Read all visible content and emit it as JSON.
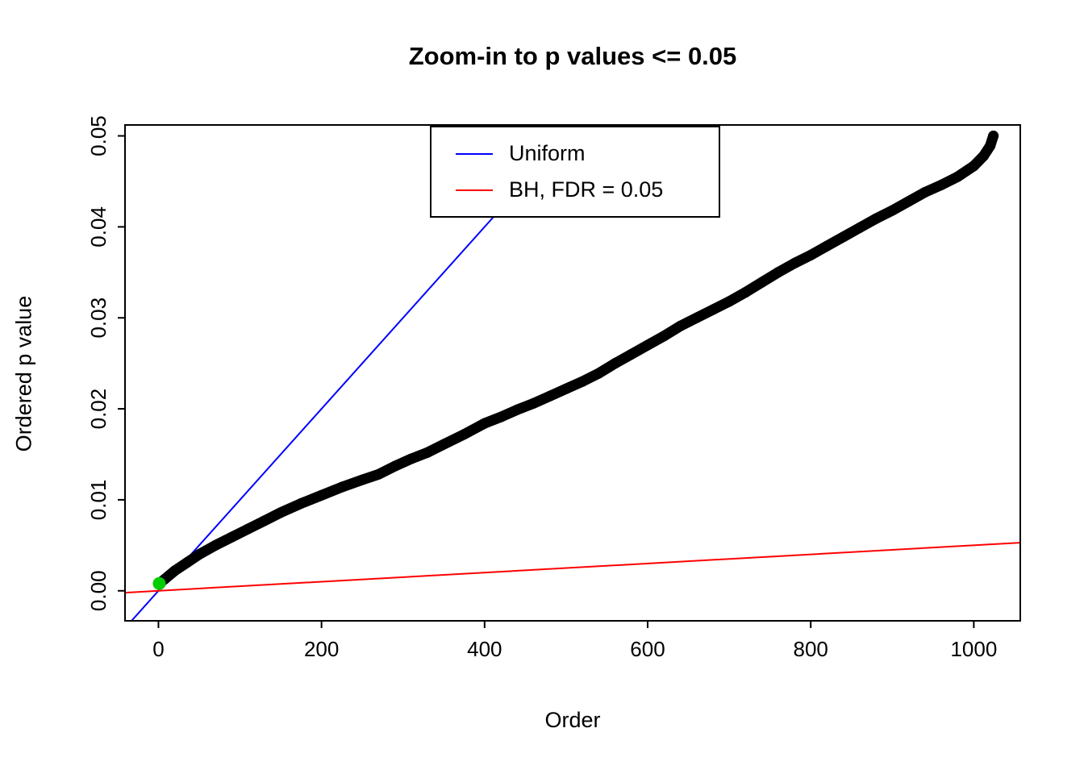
{
  "chart_data": {
    "type": "scatter",
    "title": "Zoom-in to p values <= 0.05",
    "xlabel": "Order",
    "ylabel": "Ordered p value",
    "xlim": [
      -41,
      1057
    ],
    "ylim": [
      -0.0033,
      0.0512
    ],
    "grid": false,
    "xticks": {
      "values": [
        0,
        200,
        400,
        600,
        800,
        1000
      ],
      "labels": [
        "0",
        "200",
        "400",
        "600",
        "800",
        "1000"
      ]
    },
    "yticks": {
      "values": [
        0,
        0.01,
        0.02,
        0.03,
        0.04,
        0.05
      ],
      "labels": [
        "0.00",
        "0.01",
        "0.02",
        "0.03",
        "0.04",
        "0.05"
      ]
    },
    "legend": [
      {
        "label": "Uniform",
        "color": "#0000FF"
      },
      {
        "label": "BH, FDR = 0.05",
        "color": "#FF0000"
      }
    ],
    "lines": [
      {
        "name": "uniform-line",
        "slope": 0.0001,
        "intercept": 0,
        "color": "#0000FF",
        "width": 2
      },
      {
        "name": "bh-fdr-line",
        "slope": 5e-06,
        "intercept": 0,
        "color": "#FF0000",
        "width": 2
      }
    ],
    "points_series": {
      "name": "ordered-p-values",
      "color": "#000000",
      "marker_radius": 6.5,
      "points": [
        [
          1,
          0.0008
        ],
        [
          8,
          0.0013
        ],
        [
          20,
          0.0022
        ],
        [
          35,
          0.0031
        ],
        [
          50,
          0.004
        ],
        [
          70,
          0.005
        ],
        [
          90,
          0.0059
        ],
        [
          110,
          0.0068
        ],
        [
          130,
          0.0077
        ],
        [
          150,
          0.0086
        ],
        [
          175,
          0.0096
        ],
        [
          200,
          0.0105
        ],
        [
          225,
          0.0114
        ],
        [
          250,
          0.0122
        ],
        [
          270,
          0.0128
        ],
        [
          290,
          0.0137
        ],
        [
          310,
          0.0145
        ],
        [
          330,
          0.0152
        ],
        [
          350,
          0.0161
        ],
        [
          375,
          0.0172
        ],
        [
          400,
          0.0184
        ],
        [
          420,
          0.0191
        ],
        [
          440,
          0.0199
        ],
        [
          460,
          0.0206
        ],
        [
          480,
          0.0214
        ],
        [
          500,
          0.0222
        ],
        [
          520,
          0.023
        ],
        [
          540,
          0.0239
        ],
        [
          560,
          0.025
        ],
        [
          580,
          0.026
        ],
        [
          600,
          0.027
        ],
        [
          620,
          0.028
        ],
        [
          640,
          0.0291
        ],
        [
          660,
          0.03
        ],
        [
          680,
          0.0309
        ],
        [
          700,
          0.0318
        ],
        [
          720,
          0.0328
        ],
        [
          740,
          0.0339
        ],
        [
          760,
          0.035
        ],
        [
          780,
          0.036
        ],
        [
          800,
          0.0369
        ],
        [
          820,
          0.0379
        ],
        [
          840,
          0.0389
        ],
        [
          860,
          0.0399
        ],
        [
          880,
          0.0409
        ],
        [
          900,
          0.0418
        ],
        [
          920,
          0.0428
        ],
        [
          940,
          0.0438
        ],
        [
          960,
          0.0446
        ],
        [
          980,
          0.0455
        ],
        [
          1000,
          0.0467
        ],
        [
          1012,
          0.0478
        ],
        [
          1020,
          0.0489
        ],
        [
          1024,
          0.05
        ]
      ]
    },
    "highlight_point": {
      "x": 1,
      "y": 0.0008,
      "color": "#00CD00",
      "radius": 8
    }
  }
}
